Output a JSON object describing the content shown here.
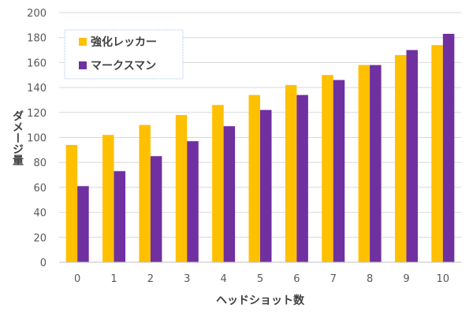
{
  "chart_data": {
    "type": "bar",
    "xlabel": "ヘッドショット数",
    "ylabel": "ダメージ量",
    "ylim": [
      0,
      200
    ],
    "y_ticks": [
      0,
      20,
      40,
      60,
      80,
      100,
      120,
      140,
      160,
      180,
      200
    ],
    "grid": true,
    "legend_position": "top-left",
    "categories": [
      "0",
      "1",
      "2",
      "3",
      "4",
      "5",
      "6",
      "7",
      "8",
      "9",
      "10"
    ],
    "series": [
      {
        "name": "強化レッカー",
        "color": "#FFC000",
        "values": [
          94,
          102,
          110,
          118,
          126,
          134,
          142,
          150,
          158,
          166,
          174
        ]
      },
      {
        "name": "マークスマン",
        "color": "#7030A0",
        "values": [
          61,
          73,
          85,
          97,
          109,
          122,
          134,
          146,
          158,
          170,
          183
        ]
      }
    ]
  }
}
